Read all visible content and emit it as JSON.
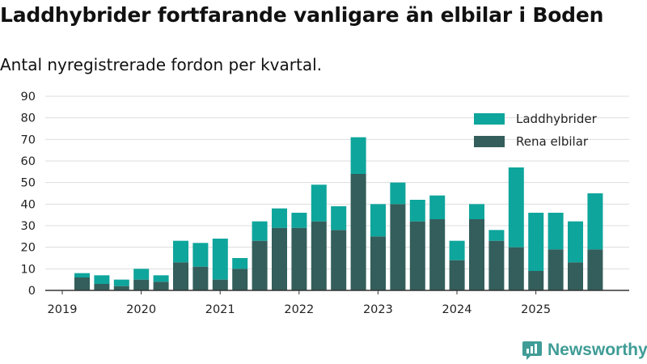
{
  "title": "Laddhybrider fortfarande vanligare än elbilar i Boden",
  "subtitle": "Antal nyregistrerade fordon per kvartal.",
  "brand": {
    "name": "Newsworthy"
  },
  "chart_data": {
    "type": "bar",
    "stacked": true,
    "title": "Laddhybrider fortfarande vanligare än elbilar i Boden",
    "subtitle": "Antal nyregistrerade fordon per kvartal.",
    "xlabel": "",
    "ylabel": "",
    "ylim": [
      0,
      90
    ],
    "yticks": [
      0,
      10,
      20,
      30,
      40,
      50,
      60,
      70,
      80,
      90
    ],
    "grid": true,
    "legend_position": "top-right",
    "categories": [
      "2019 Q2",
      "2019 Q3",
      "2019 Q4",
      "2020 Q1",
      "2020 Q2",
      "2020 Q3",
      "2020 Q4",
      "2021 Q1",
      "2021 Q2",
      "2021 Q3",
      "2021 Q4",
      "2022 Q1",
      "2022 Q2",
      "2022 Q3",
      "2022 Q4",
      "2023 Q1",
      "2023 Q2",
      "2023 Q3",
      "2023 Q4",
      "2024 Q1",
      "2024 Q2",
      "2024 Q3",
      "2024 Q4",
      "2025 Q1",
      "2025 Q2",
      "2025 Q3",
      "2025 Q4"
    ],
    "xtick_labels": [
      "2019",
      "2020",
      "2021",
      "2022",
      "2023",
      "2024",
      "2025"
    ],
    "series": [
      {
        "name": "Rena elbilar",
        "color": "#335e5b",
        "values": [
          6,
          3,
          2,
          5,
          4,
          13,
          11,
          5,
          10,
          23,
          29,
          29,
          32,
          28,
          54,
          25,
          40,
          32,
          33,
          14,
          33,
          23,
          20,
          9,
          19,
          13,
          19
        ]
      },
      {
        "name": "Laddhybrider",
        "color": "#0ea59c",
        "values": [
          2,
          4,
          3,
          5,
          3,
          10,
          11,
          19,
          5,
          9,
          9,
          7,
          17,
          11,
          17,
          15,
          10,
          10,
          11,
          9,
          7,
          5,
          37,
          27,
          17,
          19,
          26
        ]
      }
    ],
    "legend": [
      "Laddhybrider",
      "Rena elbilar"
    ]
  }
}
